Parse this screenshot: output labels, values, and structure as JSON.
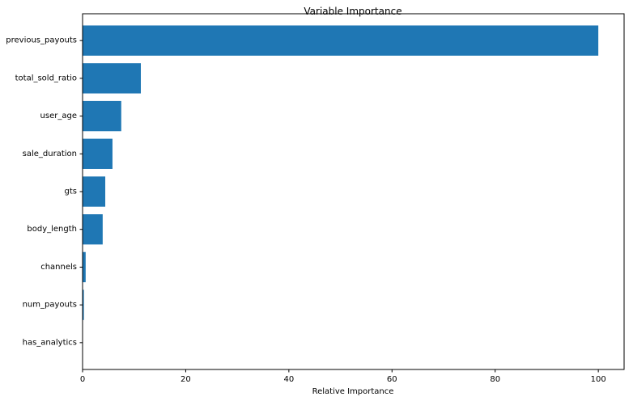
{
  "chart_data": {
    "type": "bar",
    "orientation": "horizontal",
    "title": "Variable Importance",
    "xlabel": "Relative Importance",
    "ylabel": "",
    "categories": [
      "previous_payouts",
      "total_sold_ratio",
      "user_age",
      "sale_duration",
      "gts",
      "body_length",
      "channels",
      "num_payouts",
      "has_analytics"
    ],
    "values": [
      100,
      11.3,
      7.5,
      5.8,
      4.4,
      3.9,
      0.6,
      0.25,
      0.05
    ],
    "xlim": [
      0,
      105
    ],
    "xticks": [
      0,
      20,
      40,
      60,
      80,
      100
    ],
    "grid": false,
    "legend": "none",
    "bar_color": "#1f77b4"
  }
}
